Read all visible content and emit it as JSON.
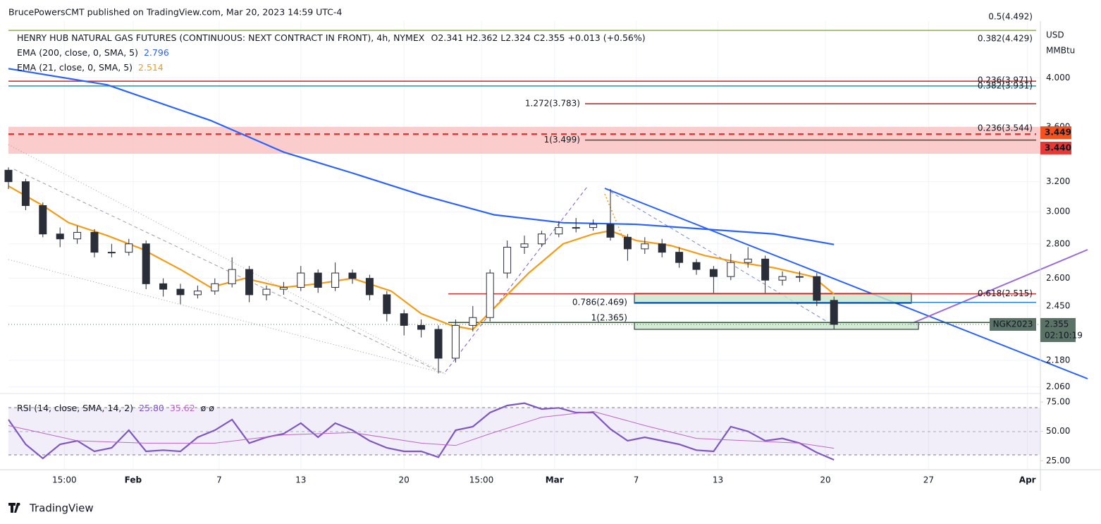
{
  "header": {
    "publisher": "BrucePowersCMT published on TradingView.com, Mar 20, 2023 14:59 UTC-4"
  },
  "footer": {
    "brand": "TradingView"
  },
  "chart_data": [
    {
      "type": "candlestick",
      "symbol": "HENRY HUB NATURAL GAS FUTURES (CONTINUOUS: NEXT CONTRACT IN FRONT), 4h, NYMEX",
      "ohlc_text": "O2.341  H2.362  L2.324  C2.355  +0.013 (+0.56%)",
      "currency": "USD",
      "unit": "MMBtu",
      "x": [
        0,
        4,
        8,
        12,
        16,
        20,
        24,
        28,
        32,
        36,
        40,
        44,
        48,
        52,
        56,
        60,
        64,
        68,
        72,
        76,
        80,
        84,
        88,
        92,
        96,
        100,
        104,
        108,
        112,
        116,
        120,
        124,
        128,
        132,
        136,
        140,
        144,
        148,
        152,
        156,
        160,
        164,
        168,
        172,
        176,
        180,
        184,
        188,
        192
      ],
      "open": [
        3.28,
        3.2,
        3.04,
        2.86,
        2.83,
        2.87,
        2.75,
        2.75,
        2.8,
        2.57,
        2.54,
        2.51,
        2.53,
        2.57,
        2.65,
        2.51,
        2.54,
        2.55,
        2.63,
        2.55,
        2.63,
        2.6,
        2.51,
        2.41,
        2.35,
        2.33,
        2.19,
        2.35,
        2.39,
        2.63,
        2.78,
        2.8,
        2.86,
        2.9,
        2.9,
        2.92,
        2.84,
        2.77,
        2.8,
        2.75,
        2.69,
        2.65,
        2.61,
        2.69,
        2.71,
        2.59,
        2.61,
        2.61,
        2.48
      ],
      "high": [
        3.3,
        3.22,
        3.06,
        2.9,
        2.91,
        2.89,
        2.8,
        2.83,
        2.82,
        2.6,
        2.57,
        2.56,
        2.6,
        2.72,
        2.67,
        2.56,
        2.58,
        2.67,
        2.65,
        2.69,
        2.65,
        2.62,
        2.53,
        2.43,
        2.38,
        2.35,
        2.38,
        2.45,
        2.65,
        2.82,
        2.85,
        2.88,
        2.94,
        2.96,
        2.95,
        3.15,
        2.86,
        2.84,
        2.83,
        2.78,
        2.71,
        2.67,
        2.74,
        2.78,
        2.73,
        2.64,
        2.64,
        2.63,
        2.5
      ],
      "low": [
        3.15,
        3.01,
        2.84,
        2.78,
        2.8,
        2.72,
        2.72,
        2.73,
        2.54,
        2.5,
        2.46,
        2.49,
        2.51,
        2.55,
        2.47,
        2.48,
        2.51,
        2.53,
        2.52,
        2.53,
        2.57,
        2.48,
        2.37,
        2.3,
        2.29,
        2.12,
        2.17,
        2.32,
        2.37,
        2.6,
        2.74,
        2.78,
        2.84,
        2.87,
        2.88,
        2.82,
        2.7,
        2.74,
        2.72,
        2.66,
        2.62,
        2.52,
        2.59,
        2.66,
        2.52,
        2.56,
        2.58,
        2.45,
        2.33
      ],
      "close": [
        3.2,
        3.04,
        2.86,
        2.83,
        2.87,
        2.75,
        2.75,
        2.8,
        2.57,
        2.54,
        2.51,
        2.53,
        2.57,
        2.65,
        2.51,
        2.54,
        2.55,
        2.63,
        2.55,
        2.63,
        2.6,
        2.51,
        2.41,
        2.35,
        2.33,
        2.19,
        2.35,
        2.39,
        2.63,
        2.78,
        2.8,
        2.86,
        2.9,
        2.9,
        2.92,
        2.84,
        2.77,
        2.8,
        2.75,
        2.69,
        2.65,
        2.61,
        2.69,
        2.71,
        2.59,
        2.61,
        2.61,
        2.48,
        2.355
      ],
      "up_color": "#ffffff",
      "down_color": "#2a2e39",
      "border_color": "#2a2e39",
      "log_scale": true,
      "grid": true,
      "ylim": [
        2.03,
        4.45
      ],
      "yticks": [
        {
          "value": 2.06,
          "label": "2.060"
        },
        {
          "value": 2.18,
          "label": "2.180"
        },
        {
          "value": 2.45,
          "label": "2.450"
        },
        {
          "value": 2.6,
          "label": "2.600"
        },
        {
          "value": 2.8,
          "label": "2.800"
        },
        {
          "value": 3,
          "label": "3.000"
        },
        {
          "value": 3.2,
          "label": "3.200"
        },
        {
          "value": 3.6,
          "label": "3.600"
        },
        {
          "value": 4,
          "label": "4.000"
        }
      ],
      "xlim": [
        0,
        240
      ],
      "xticks": [
        {
          "value": 13,
          "label": "15:00"
        },
        {
          "value": 29,
          "label": "Feb"
        },
        {
          "value": 49,
          "label": "7"
        },
        {
          "value": 68,
          "label": "13"
        },
        {
          "value": 92,
          "label": "20"
        },
        {
          "value": 110,
          "label": "15:00"
        },
        {
          "value": 127,
          "label": "Mar"
        },
        {
          "value": 146,
          "label": "7"
        },
        {
          "value": 165,
          "label": "13"
        },
        {
          "value": 190,
          "label": "20"
        },
        {
          "value": 214,
          "label": "27"
        },
        {
          "value": 237,
          "label": "Apr"
        }
      ],
      "lines": [
        {
          "name": "EMA (200, close, 0, SMA, 5)",
          "color": "#2962ff",
          "x": [
            0,
            23,
            47,
            64,
            80,
            96,
            113,
            129,
            146,
            162,
            178,
            192
          ],
          "values": [
            4.08,
            3.94,
            3.65,
            3.41,
            3.26,
            3.11,
            2.98,
            2.93,
            2.92,
            2.89,
            2.86,
            2.796
          ]
        },
        {
          "name": "EMA (21, close, 0, SMA, 5)",
          "color": "#f59b14",
          "x": [
            0,
            8,
            14,
            23,
            31,
            40,
            47,
            55,
            64,
            72,
            80,
            89,
            96,
            103,
            108,
            113,
            121,
            129,
            136,
            140,
            146,
            154,
            162,
            170,
            178,
            187,
            192
          ],
          "values": [
            3.17,
            3.04,
            2.93,
            2.85,
            2.77,
            2.65,
            2.55,
            2.6,
            2.55,
            2.57,
            2.6,
            2.53,
            2.41,
            2.35,
            2.33,
            2.44,
            2.63,
            2.8,
            2.86,
            2.88,
            2.82,
            2.79,
            2.73,
            2.69,
            2.66,
            2.61,
            2.514
          ]
        }
      ],
      "levels": [
        {
          "label": "0.5(4.492)",
          "value": 4.492,
          "color": "#8bb33a"
        },
        {
          "label": "0.382(4.429)",
          "value": 4.429,
          "color": "#8bb33a"
        },
        {
          "label": "0.236(3.971)",
          "value": 3.971,
          "color": "#c62828"
        },
        {
          "label": "0.382(3.931)",
          "value": 3.931,
          "color": "#2196a8"
        },
        {
          "label": "1.272(3.783)",
          "value": 3.783,
          "color": "#b71c1c"
        },
        {
          "label": "1(3.499)",
          "value": 3.499,
          "color": "#5d4037"
        },
        {
          "label": "0.236(3.544)",
          "value": 3.544,
          "color": "#e53935"
        },
        {
          "label": "0.618(2.515)",
          "value": 2.515,
          "color": "#d32f2f"
        },
        {
          "label": "0.786(2.469)",
          "value": 2.469,
          "color": "#1e88e5"
        },
        {
          "label": "1(2.365)",
          "value": 2.365,
          "color": "#1b5e20"
        }
      ],
      "price_labels": [
        {
          "value": 3.449,
          "color": "#f4511e"
        },
        {
          "value": 3.44,
          "label": "3.440",
          "color": "#e53935"
        }
      ],
      "last_price": 2.355,
      "last_color": "#5b7367",
      "countdown": "02:10:19",
      "symbol_tag": "NGK2023"
    },
    {
      "type": "line",
      "name": "RSI (14, close, SMA, 14, 2)",
      "flags": "ø  ø",
      "ylim": [
        18,
        81
      ],
      "yticks": [
        {
          "value": 25,
          "label": "25.00"
        },
        {
          "value": 50,
          "label": "50.00"
        },
        {
          "value": 75,
          "label": "75.00"
        }
      ],
      "xlim": [
        0,
        240
      ],
      "series": [
        {
          "color": "#7e57c2",
          "width": 2.2,
          "x": [
            0,
            4,
            8,
            12,
            16,
            20,
            24,
            28,
            32,
            36,
            40,
            44,
            48,
            52,
            56,
            60,
            64,
            68,
            72,
            76,
            80,
            84,
            88,
            92,
            96,
            100,
            104,
            108,
            112,
            116,
            120,
            124,
            128,
            132,
            136,
            140,
            144,
            148,
            152,
            156,
            160,
            164,
            168,
            172,
            176,
            180,
            184,
            188
          ],
          "values": [
            60,
            39,
            27,
            39,
            42,
            33,
            36,
            51,
            33,
            34,
            33,
            45,
            51,
            60,
            40,
            45,
            48,
            57,
            45,
            57,
            51,
            42,
            36,
            33,
            33,
            28,
            51,
            54,
            66,
            72,
            74,
            69,
            70,
            66,
            66,
            52,
            42,
            45,
            42,
            39,
            34,
            33,
            54,
            50,
            42,
            44,
            40,
            32
          ],
          "last": {
            "x": 192,
            "value": 25.8,
            "label": "25.80"
          }
        },
        {
          "color": "#ba68c8",
          "width": 1,
          "x": [
            0,
            16,
            32,
            48,
            64,
            80,
            96,
            104,
            112,
            124,
            136,
            148,
            160,
            172,
            184,
            192
          ],
          "values": [
            55,
            42,
            40,
            40,
            47,
            49,
            40,
            38,
            48,
            62,
            67,
            55,
            44,
            42,
            40,
            35.62
          ]
        }
      ]
    }
  ]
}
